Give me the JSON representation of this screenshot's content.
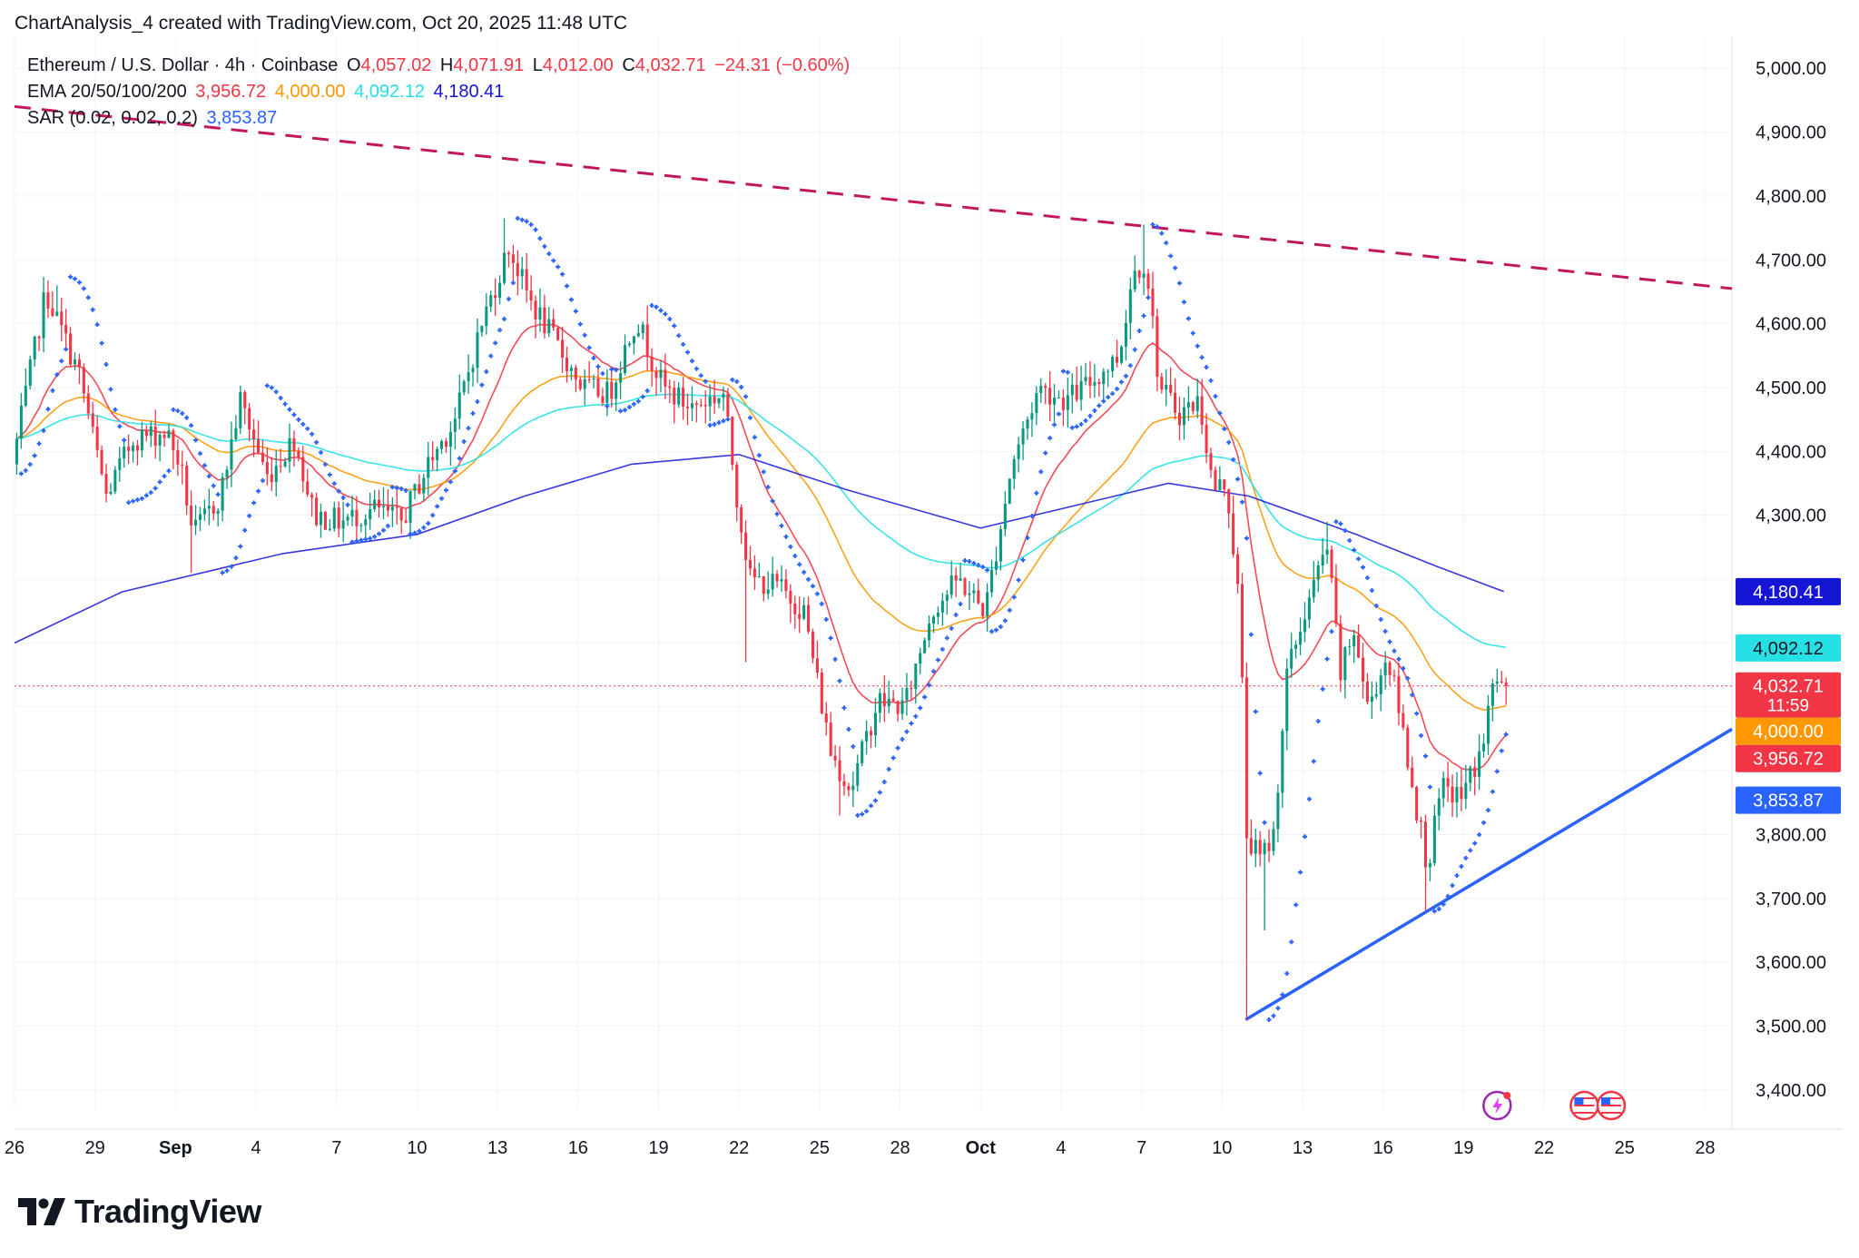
{
  "header": {
    "caption": "ChartAnalysis_4 created with TradingView.com, Oct 20, 2025 11:48 UTC"
  },
  "legend": {
    "symbol": "Ethereum / U.S. Dollar · 4h · Coinbase",
    "o_label": "O",
    "open": "4,057.02",
    "h_label": "H",
    "high": "4,071.91",
    "l_label": "L",
    "low": "4,012.00",
    "c_label": "C",
    "close": "4,032.71",
    "change": "−24.31 (−0.60%)",
    "ema_label": "EMA 20/50/100/200",
    "ema20": "3,956.72",
    "ema50": "4,000.00",
    "ema100": "4,092.12",
    "ema200": "4,180.41",
    "sar_label": "SAR (0.02, 0.02, 0.2)",
    "sar": "3,853.87"
  },
  "price_badges": [
    {
      "text": "4,180.41",
      "color": "#1515d6"
    },
    {
      "text": "4,092.12",
      "color": "#26e0e6"
    },
    {
      "text": "4,032.71",
      "color": "#f23645",
      "sub": "11:59"
    },
    {
      "text": "4,000.00",
      "color": "#ff9800"
    },
    {
      "text": "3,956.72",
      "color": "#f23645"
    },
    {
      "text": "3,853.87",
      "color": "#2962ff"
    }
  ],
  "colors": {
    "up": "#089981",
    "down": "#f23645",
    "ema20": "#f23645",
    "ema50": "#ff9800",
    "ema100": "#26e0e6",
    "ema200": "#1515d6",
    "sar": "#2962ff",
    "resistance": "#c2185b",
    "support": "#2962ff",
    "grid": "#f0f3fa"
  },
  "logo": {
    "text": "TradingView"
  },
  "chart_data": {
    "type": "candlestick",
    "x_tick_labels": [
      "26",
      "29",
      "Sep",
      "4",
      "7",
      "10",
      "13",
      "16",
      "19",
      "22",
      "25",
      "28",
      "Oct",
      "4",
      "7",
      "10",
      "13",
      "16",
      "19",
      "22",
      "25",
      "28"
    ],
    "y_ticks": [
      3400,
      3500,
      3600,
      3700,
      3800,
      3900,
      4000,
      4100,
      4200,
      4300,
      4400,
      4500,
      4600,
      4700,
      4800,
      4900,
      5000
    ],
    "y_tick_labels": [
      "3,400.00",
      "3,500.00",
      "3,600.00",
      "3,700.00",
      "3,800.00",
      "",
      "",
      "",
      "",
      "4,300.00",
      "4,400.00",
      "4,500.00",
      "4,600.00",
      "4,700.00",
      "4,800.00",
      "4,900.00",
      "5,000.00"
    ],
    "ylim": [
      3370,
      5050
    ],
    "x_range_days": [
      "2025-08-26",
      "2025-10-29"
    ],
    "last_price": 4032.71,
    "price_anchors": [
      [
        "2025-08-26T00:00",
        4380
      ],
      [
        "2025-08-27T06:00",
        4650
      ],
      [
        "2025-08-28T12:00",
        4520
      ],
      [
        "2025-08-29T12:00",
        4330
      ],
      [
        "2025-08-30T12:00",
        4420
      ],
      [
        "2025-08-31T18:00",
        4430
      ],
      [
        "2025-09-01T06:00",
        4380
      ],
      [
        "2025-09-01T18:00",
        4270
      ],
      [
        "2025-09-02T18:00",
        4330
      ],
      [
        "2025-09-03T12:00",
        4480
      ],
      [
        "2025-09-04T12:00",
        4360
      ],
      [
        "2025-09-05T12:00",
        4420
      ],
      [
        "2025-09-06T06:00",
        4300
      ],
      [
        "2025-09-07T06:00",
        4290
      ],
      [
        "2025-09-08T12:00",
        4310
      ],
      [
        "2025-09-09T12:00",
        4290
      ],
      [
        "2025-09-10T12:00",
        4380
      ],
      [
        "2025-09-11T12:00",
        4450
      ],
      [
        "2025-09-12T12:00",
        4600
      ],
      [
        "2025-09-13T12:00",
        4720
      ],
      [
        "2025-09-14T06:00",
        4640
      ],
      [
        "2025-09-15T06:00",
        4570
      ],
      [
        "2025-09-16T06:00",
        4500
      ],
      [
        "2025-09-17T06:00",
        4490
      ],
      [
        "2025-09-18T06:00",
        4610
      ],
      [
        "2025-09-19T06:00",
        4500
      ],
      [
        "2025-09-20T06:00",
        4470
      ],
      [
        "2025-09-21T12:00",
        4490
      ],
      [
        "2025-09-22T00:00",
        4330
      ],
      [
        "2025-09-22T12:00",
        4200
      ],
      [
        "2025-09-23T12:00",
        4190
      ],
      [
        "2025-09-24T12:00",
        4150
      ],
      [
        "2025-09-25T12:00",
        3930
      ],
      [
        "2025-09-26T06:00",
        3870
      ],
      [
        "2025-09-27T06:00",
        4010
      ],
      [
        "2025-09-28T06:00",
        4000
      ],
      [
        "2025-09-29T06:00",
        4150
      ],
      [
        "2025-09-30T06:00",
        4200
      ],
      [
        "2025-10-01T06:00",
        4150
      ],
      [
        "2025-10-02T06:00",
        4380
      ],
      [
        "2025-10-03T06:00",
        4500
      ],
      [
        "2025-10-04T06:00",
        4480
      ],
      [
        "2025-10-05T06:00",
        4510
      ],
      [
        "2025-10-06T06:00",
        4550
      ],
      [
        "2025-10-06T18:00",
        4680
      ],
      [
        "2025-10-07T06:00",
        4700
      ],
      [
        "2025-10-07T18:00",
        4500
      ],
      [
        "2025-10-08T12:00",
        4460
      ],
      [
        "2025-10-09T06:00",
        4480
      ],
      [
        "2025-10-09T18:00",
        4340
      ],
      [
        "2025-10-10T06:00",
        4350
      ],
      [
        "2025-10-10T18:00",
        4150
      ],
      [
        "2025-10-11T00:00",
        3800
      ],
      [
        "2025-10-11T12:00",
        3760
      ],
      [
        "2025-10-12T00:00",
        3800
      ],
      [
        "2025-10-12T12:00",
        4050
      ],
      [
        "2025-10-13T06:00",
        4160
      ],
      [
        "2025-10-14T00:00",
        4250
      ],
      [
        "2025-10-14T12:00",
        4050
      ],
      [
        "2025-10-15T00:00",
        4120
      ],
      [
        "2025-10-15T12:00",
        4000
      ],
      [
        "2025-10-16T06:00",
        4080
      ],
      [
        "2025-10-16T18:00",
        3980
      ],
      [
        "2025-10-17T06:00",
        3860
      ],
      [
        "2025-10-17T18:00",
        3750
      ],
      [
        "2025-10-18T06:00",
        3870
      ],
      [
        "2025-10-19T00:00",
        3860
      ],
      [
        "2025-10-19T18:00",
        3930
      ],
      [
        "2025-10-20T06:00",
        4050
      ],
      [
        "2025-10-20T12:00",
        4032.71
      ]
    ],
    "wick_extremes": [
      [
        "2025-08-27T12:00",
        "high",
        4660
      ],
      [
        "2025-09-01T12:00",
        "low",
        4210
      ],
      [
        "2025-09-13T06:00",
        "high",
        4765
      ],
      [
        "2025-09-22T06:00",
        "low",
        4070
      ],
      [
        "2025-09-25T18:00",
        "low",
        3830
      ],
      [
        "2025-10-07T00:00",
        "high",
        4755
      ],
      [
        "2025-10-10T21:00",
        "low",
        3510
      ],
      [
        "2025-10-11T12:00",
        "low",
        3650
      ],
      [
        "2025-10-13T21:00",
        "high",
        4290
      ],
      [
        "2025-10-17T12:00",
        "low",
        3680
      ]
    ],
    "ema200_path": [
      [
        "2025-08-26T00:00",
        4100
      ],
      [
        "2025-08-30T00:00",
        4180
      ],
      [
        "2025-09-05T00:00",
        4240
      ],
      [
        "2025-09-10T00:00",
        4270
      ],
      [
        "2025-09-14T00:00",
        4330
      ],
      [
        "2025-09-18T00:00",
        4380
      ],
      [
        "2025-09-22T00:00",
        4395
      ],
      [
        "2025-09-26T00:00",
        4340
      ],
      [
        "2025-10-01T00:00",
        4280
      ],
      [
        "2025-10-05T00:00",
        4320
      ],
      [
        "2025-10-08T00:00",
        4350
      ],
      [
        "2025-10-11T00:00",
        4330
      ],
      [
        "2025-10-15T00:00",
        4270
      ],
      [
        "2025-10-18T00:00",
        4220
      ],
      [
        "2025-10-20T12:00",
        4180.41
      ]
    ],
    "resistance_line": [
      [
        "2025-08-26T00:00",
        4940
      ],
      [
        "2025-10-29T00:00",
        4655
      ]
    ],
    "support_line": [
      [
        "2025-10-10T21:00",
        3510
      ],
      [
        "2025-10-29T00:00",
        3965
      ]
    ],
    "event_icons": [
      {
        "date": "2025-10-20T06:00",
        "name": "lightning-icon"
      },
      {
        "date": "2025-10-23T12:00",
        "name": "us-flag-icon"
      },
      {
        "date": "2025-10-24T12:00",
        "name": "us-flag-icon"
      }
    ]
  }
}
